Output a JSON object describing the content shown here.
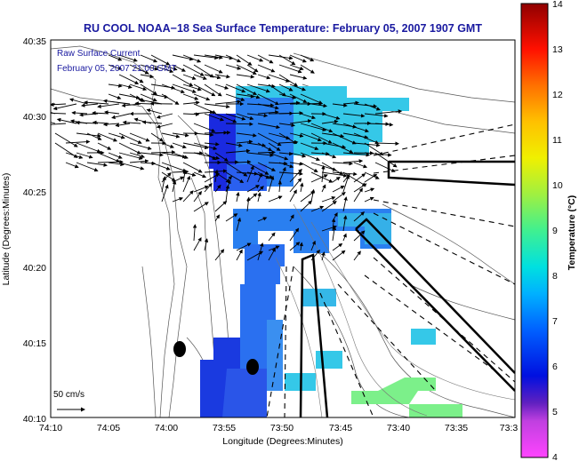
{
  "title": "RU COOL  NOAA−18  Sea Surface Temperature:  February 05, 2007 1907 GMT",
  "legend": {
    "line1": "Raw Surface Current",
    "line2": "February 05, 2007 21:00 GMT"
  },
  "scale_label": "50 cm/s",
  "axes": {
    "xlabel": "Longitude (Degrees:Minutes)",
    "ylabel": "Latitude (Degrees:Minutes)",
    "xticks": [
      "74:10",
      "74:05",
      "74:00",
      "73:55",
      "73:50",
      "73:45",
      "73:40",
      "73:35",
      "73:3"
    ],
    "yticks": [
      "40:35",
      "40:30",
      "40:25",
      "40:20",
      "40:15",
      "40:10"
    ]
  },
  "colorbar": {
    "label": "Temperature (°C)",
    "min": 4,
    "max": 14,
    "ticks": [
      "14",
      "13",
      "12",
      "11",
      "10",
      "9",
      "8",
      "7",
      "6",
      "5",
      "4"
    ]
  },
  "colors": {
    "title": "#1a1aa0",
    "legend_text": "#1a1aa0",
    "sst_cold": "#1a2ae0",
    "sst_mid": "#2a7ff0",
    "sst_warm": "#35c8e8",
    "sst_green": "#7cf08a"
  }
}
